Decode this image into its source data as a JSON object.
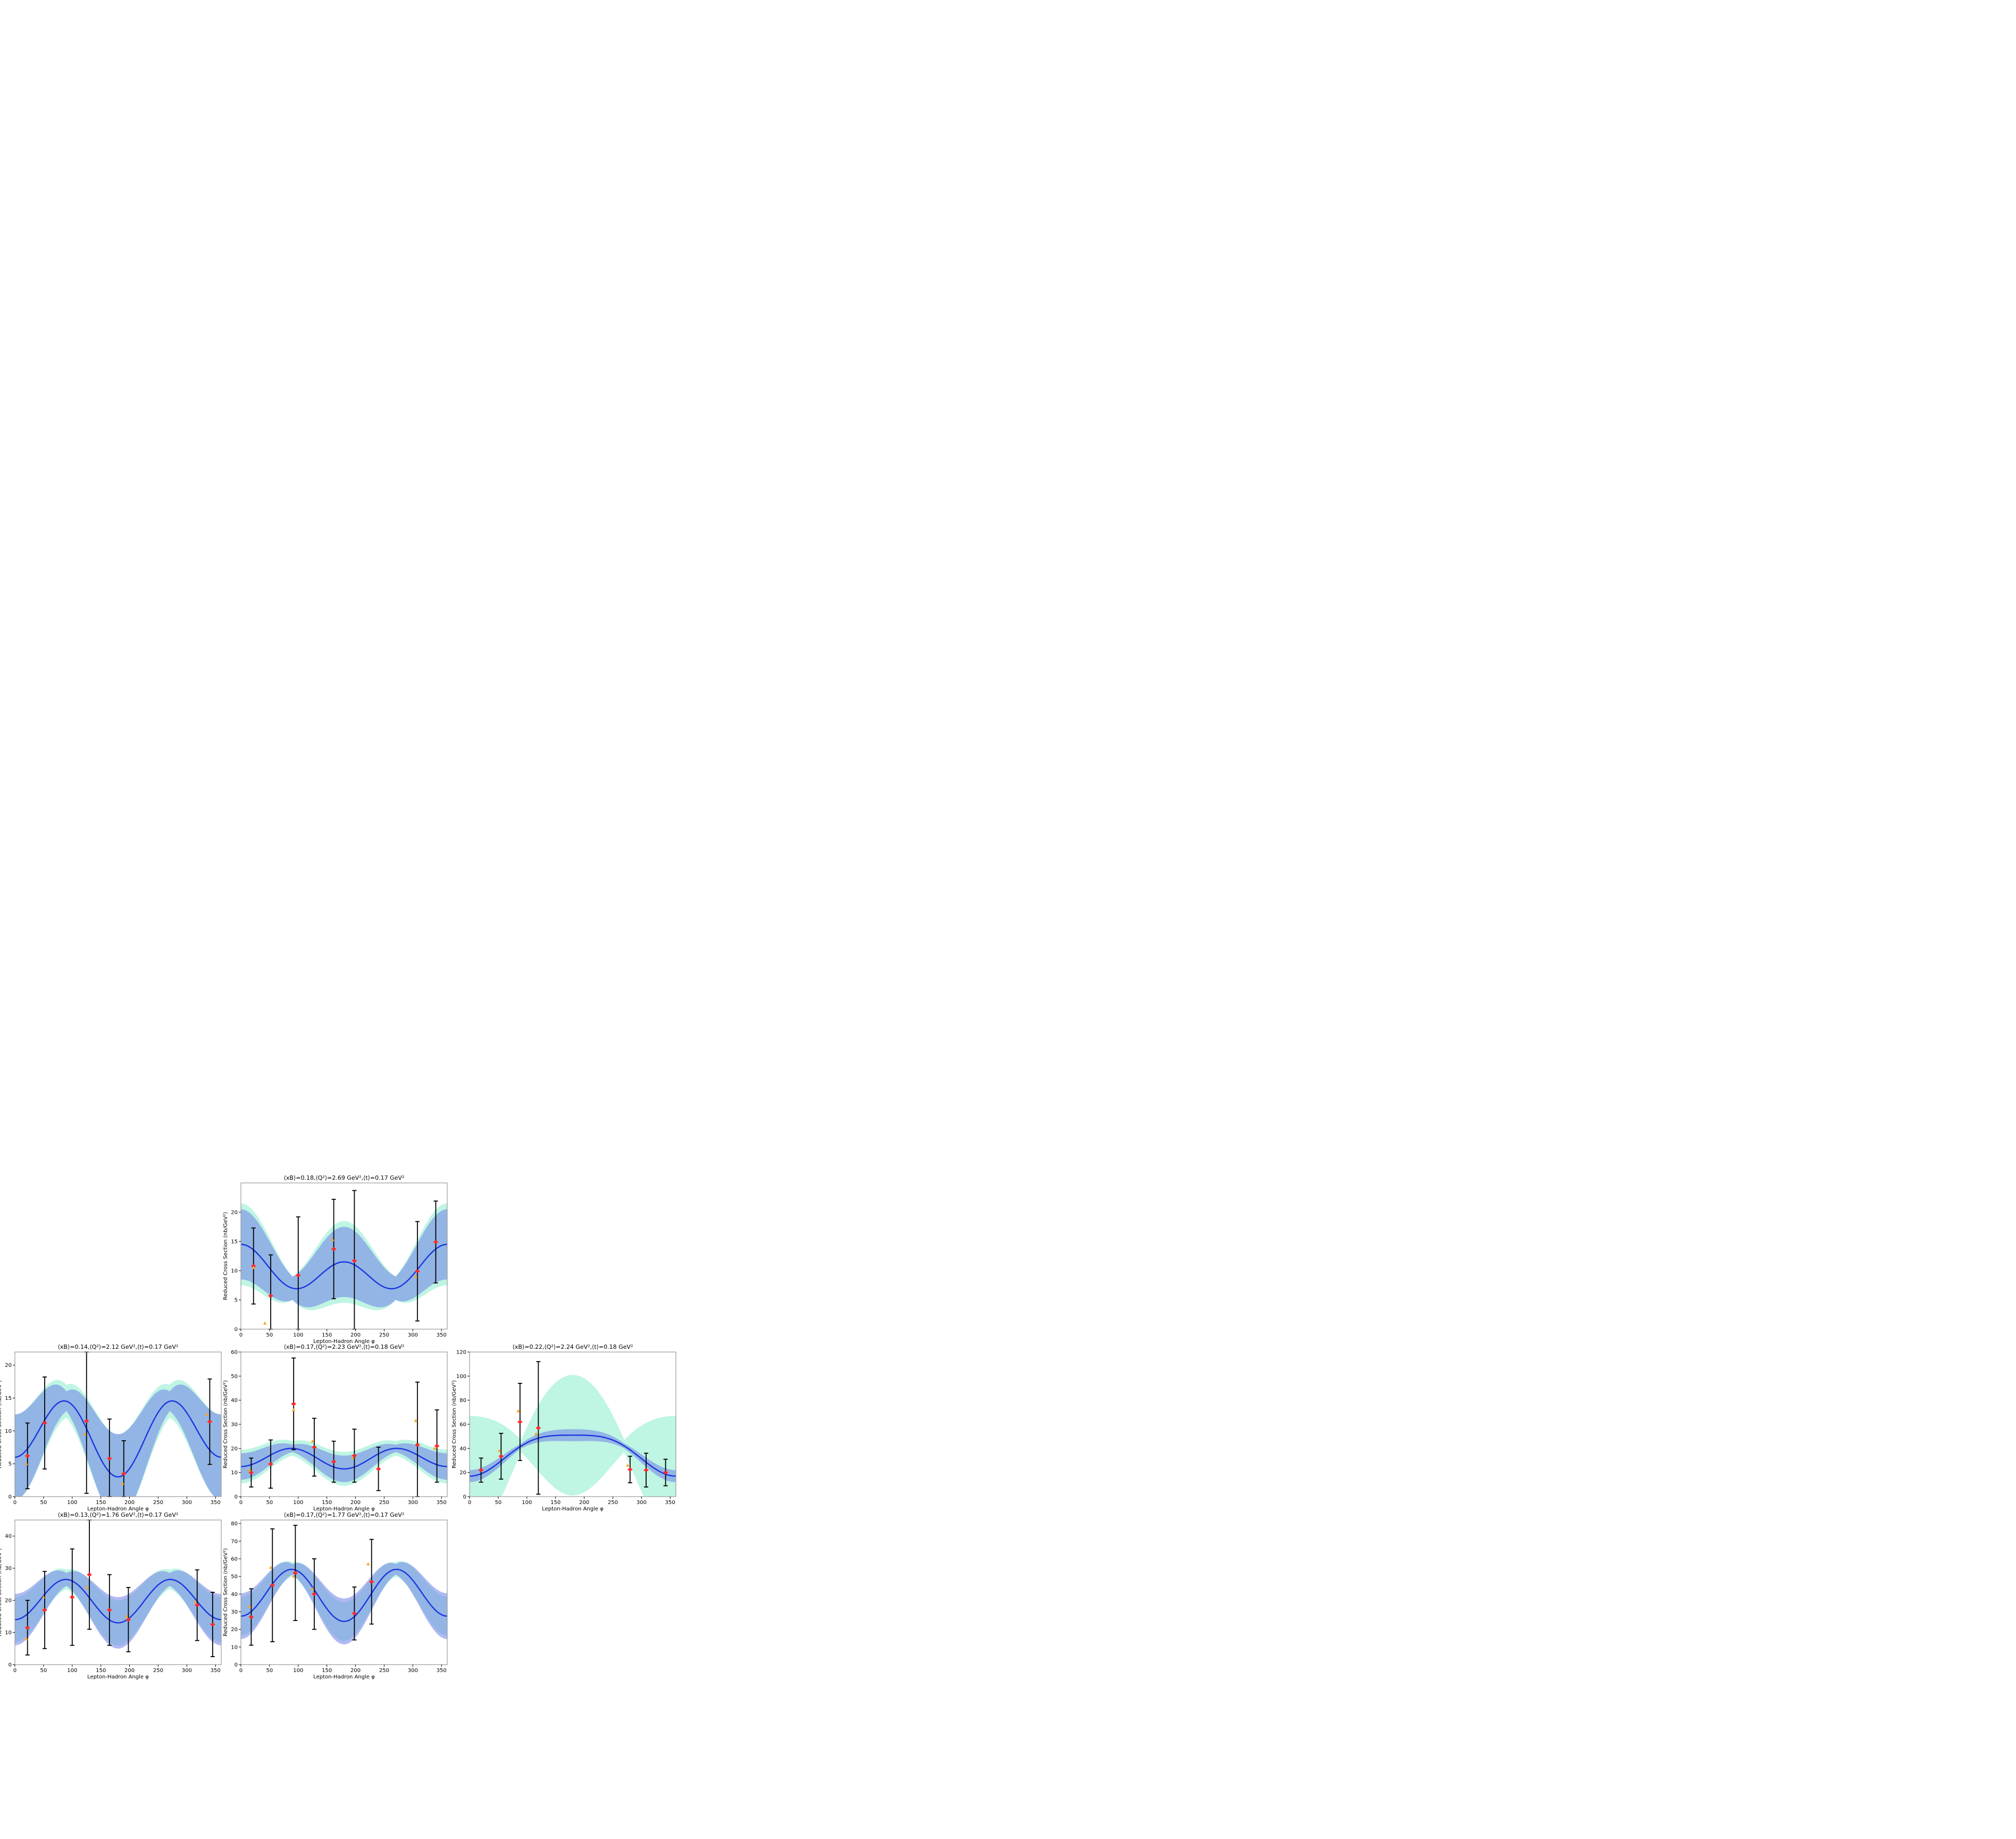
{
  "figure": {
    "xlabel": "Lepton-Hadron Angle φ",
    "ylabel": "Reduced Cross Section (nb/GeV²)"
  },
  "colors": {
    "fit_line": "#1a36e0",
    "band_blue": "#6f7fe8",
    "band_green": "#6fe8c0",
    "data_points": "#ff2a2a",
    "alt_points": "#f5a623",
    "error_bars": "#000000",
    "frame": "#999999"
  },
  "chart_data": [
    {
      "type": "line",
      "title": "⟨xB⟩=0.18,⟨Q²⟩=2.69 GeV²,⟨t⟩=0.17 GeV²",
      "xlabel": "Lepton-Hadron Angle φ",
      "ylabel": "Reduced Cross Section (nb/GeV²)",
      "xlim": [
        0,
        360
      ],
      "ylim": [
        0,
        25
      ],
      "xticks": [
        0,
        50,
        100,
        150,
        200,
        250,
        300,
        350
      ],
      "yticks": [
        0,
        5,
        10,
        15,
        20
      ],
      "fit": {
        "a0": 10,
        "a1": 1.5,
        "a2": 3.0
      },
      "blue_band": {
        "base": 2.0,
        "swing": 4.0
      },
      "green_band": {
        "base": 2.0,
        "swing": 5.0
      },
      "points": [
        {
          "x": 22,
          "y": 10.8,
          "err": 6.5,
          "xerr": 4
        },
        {
          "x": 52,
          "y": 5.7,
          "err": 7.0,
          "xerr": 4
        },
        {
          "x": 100,
          "y": 9.2,
          "err": 10.0,
          "xerr": 4
        },
        {
          "x": 162,
          "y": 13.7,
          "err": 8.5,
          "xerr": 4
        },
        {
          "x": 198,
          "y": 11.7,
          "err": 12.0,
          "xerr": 4
        },
        {
          "x": 308,
          "y": 9.9,
          "err": 8.5,
          "xerr": 4
        },
        {
          "x": 340,
          "y": 14.9,
          "err": 7.0,
          "xerr": 4
        }
      ],
      "alt_points": [
        {
          "x": 22,
          "y": 10.5
        },
        {
          "x": 42,
          "y": 1.0
        },
        {
          "x": 160,
          "y": 15.3
        },
        {
          "x": 305,
          "y": 9.0
        }
      ]
    },
    {
      "type": "line",
      "title": "⟨xB⟩=0.14,⟨Q²⟩=2.12 GeV²,⟨t⟩=0.17 GeV²",
      "xlabel": "Lepton-Hadron Angle φ",
      "ylabel": "Reduced Cross Section (nb/GeV²)",
      "xlim": [
        0,
        360
      ],
      "ylim": [
        0,
        22
      ],
      "xticks": [
        0,
        50,
        100,
        150,
        200,
        250,
        300,
        350
      ],
      "yticks": [
        0,
        5,
        10,
        15,
        20
      ],
      "fit": {
        "a0": 9.5,
        "a1": 1.5,
        "a2": -5.0
      },
      "blue_band": {
        "base": 1.5,
        "swing": 5.0
      },
      "green_band": {
        "base": 2.5,
        "swing": 4.0
      },
      "points": [
        {
          "x": 22,
          "y": 6.2,
          "err": 5.0,
          "xerr": 4
        },
        {
          "x": 52,
          "y": 11.2,
          "err": 7.0,
          "xerr": 4
        },
        {
          "x": 125,
          "y": 11.5,
          "err": 11.0,
          "xerr": 4
        },
        {
          "x": 165,
          "y": 5.8,
          "err": 6.0,
          "xerr": 4
        },
        {
          "x": 190,
          "y": 3.5,
          "err": 5.0,
          "xerr": 4
        },
        {
          "x": 340,
          "y": 11.4,
          "err": 6.5,
          "xerr": 4
        }
      ],
      "alt_points": [
        {
          "x": 20,
          "y": 5.0
        },
        {
          "x": 122,
          "y": 9.5
        },
        {
          "x": 188,
          "y": 2.0
        },
        {
          "x": 335,
          "y": 12.5
        }
      ]
    },
    {
      "type": "line",
      "title": "⟨xB⟩=0.17,⟨Q²⟩=2.23 GeV²,⟨t⟩=0.18 GeV²",
      "xlabel": "Lepton-Hadron Angle φ",
      "ylabel": "Reduced Cross Section (nb/GeV²)",
      "xlim": [
        0,
        360
      ],
      "ylim": [
        0,
        60
      ],
      "xticks": [
        0,
        50,
        100,
        150,
        200,
        250,
        300,
        350
      ],
      "yticks": [
        0,
        10,
        20,
        30,
        40,
        50,
        60
      ],
      "fit": {
        "a0": 16,
        "a1": 0.5,
        "a2": -4.0
      },
      "blue_band": {
        "base": 1.5,
        "swing": 4.0
      },
      "green_band": {
        "base": 3.0,
        "swing": 4.0
      },
      "points": [
        {
          "x": 18,
          "y": 10.0,
          "err": 6.0,
          "xerr": 4
        },
        {
          "x": 52,
          "y": 13.5,
          "err": 10.0,
          "xerr": 4
        },
        {
          "x": 92,
          "y": 38.5,
          "err": 19.0,
          "xerr": 4
        },
        {
          "x": 128,
          "y": 20.5,
          "err": 12.0,
          "xerr": 4
        },
        {
          "x": 162,
          "y": 14.5,
          "err": 8.5,
          "xerr": 4
        },
        {
          "x": 198,
          "y": 17.0,
          "err": 11.0,
          "xerr": 4
        },
        {
          "x": 240,
          "y": 11.5,
          "err": 9.0,
          "xerr": 4
        },
        {
          "x": 308,
          "y": 21.5,
          "err": 26.0,
          "xerr": 4
        },
        {
          "x": 342,
          "y": 21.0,
          "err": 15.0,
          "xerr": 4
        }
      ],
      "alt_points": [
        {
          "x": 15,
          "y": 11.0
        },
        {
          "x": 92,
          "y": 36.0
        },
        {
          "x": 125,
          "y": 23.0
        },
        {
          "x": 195,
          "y": 16.0
        },
        {
          "x": 305,
          "y": 31.5
        },
        {
          "x": 338,
          "y": 20.0
        }
      ]
    },
    {
      "type": "line",
      "title": "⟨xB⟩=0.22,⟨Q²⟩=2.24 GeV²,⟨t⟩=0.18 GeV²",
      "xlabel": "Lepton-Hadron Angle φ",
      "ylabel": "Reduced Cross Section (nb/GeV²)",
      "xlim": [
        0,
        360
      ],
      "ylim": [
        0,
        120
      ],
      "xticks": [
        0,
        50,
        100,
        150,
        200,
        250,
        300,
        350
      ],
      "yticks": [
        0,
        20,
        40,
        60,
        80,
        100,
        120
      ],
      "fit": {
        "a0": 38,
        "a1": -17,
        "a2": -4.0
      },
      "blue_band": {
        "base": 2.0,
        "swing": 3.0
      },
      "green_band": {
        "base": 5.0,
        "swing": 45.0
      },
      "points": [
        {
          "x": 20,
          "y": 22.0,
          "err": 10.0,
          "xerr": 4
        },
        {
          "x": 55,
          "y": 33.5,
          "err": 19.0,
          "xerr": 4
        },
        {
          "x": 88,
          "y": 62.0,
          "err": 32.0,
          "xerr": 4
        },
        {
          "x": 120,
          "y": 57.0,
          "err": 55.0,
          "xerr": 4
        },
        {
          "x": 280,
          "y": 22.5,
          "err": 11.0,
          "xerr": 4
        },
        {
          "x": 308,
          "y": 22.0,
          "err": 14.0,
          "xerr": 4
        },
        {
          "x": 342,
          "y": 20.0,
          "err": 11.0,
          "xerr": 4
        }
      ],
      "alt_points": [
        {
          "x": 52,
          "y": 38.0
        },
        {
          "x": 85,
          "y": 71.0
        },
        {
          "x": 116,
          "y": 52.0
        },
        {
          "x": 276,
          "y": 26.0
        }
      ]
    },
    {
      "type": "line",
      "title": "⟨xB⟩=0.13,⟨Q²⟩=1.76 GeV²,⟨t⟩=0.17 GeV²",
      "xlabel": "Lepton-Hadron Angle φ",
      "ylabel": "Reduced Cross Section (nb/GeV²)",
      "xlim": [
        0,
        360
      ],
      "ylim": [
        0,
        45
      ],
      "xticks": [
        0,
        50,
        100,
        150,
        200,
        250,
        300,
        350
      ],
      "yticks": [
        0,
        10,
        20,
        30,
        40
      ],
      "fit": {
        "a0": 20,
        "a1": 0.5,
        "a2": -6.5
      },
      "blue_band": {
        "base": 2.0,
        "swing": 6.0
      },
      "green_band": {
        "base": 3.0,
        "swing": 4.0
      },
      "points": [
        {
          "x": 22,
          "y": 11.5,
          "err": 8.5,
          "xerr": 4
        },
        {
          "x": 52,
          "y": 17.0,
          "err": 12.0,
          "xerr": 4
        },
        {
          "x": 100,
          "y": 21.0,
          "err": 15.0,
          "xerr": 4
        },
        {
          "x": 130,
          "y": 28.0,
          "err": 17.0,
          "xerr": 4
        },
        {
          "x": 165,
          "y": 17.0,
          "err": 11.0,
          "xerr": 4
        },
        {
          "x": 198,
          "y": 14.0,
          "err": 10.0,
          "xerr": 4
        },
        {
          "x": 318,
          "y": 18.5,
          "err": 11.0,
          "xerr": 4
        },
        {
          "x": 345,
          "y": 12.5,
          "err": 10.0,
          "xerr": 4
        }
      ],
      "alt_points": [
        {
          "x": 20,
          "y": 8.0
        },
        {
          "x": 50,
          "y": 21.0
        },
        {
          "x": 125,
          "y": 24.0
        },
        {
          "x": 195,
          "y": 15.0
        },
        {
          "x": 315,
          "y": 19.5
        }
      ]
    },
    {
      "type": "line",
      "title": "⟨xB⟩=0.17,⟨Q²⟩=1.77 GeV²,⟨t⟩=0.17 GeV²",
      "xlabel": "Lepton-Hadron Angle φ",
      "ylabel": "Reduced Cross Section (nb/GeV²)",
      "xlim": [
        0,
        360
      ],
      "ylim": [
        0,
        82
      ],
      "xticks": [
        0,
        50,
        100,
        150,
        200,
        250,
        300,
        350
      ],
      "yticks": [
        0,
        10,
        20,
        30,
        40,
        50,
        60,
        70,
        80
      ],
      "fit": {
        "a0": 40,
        "a1": 1.5,
        "a2": -14.0
      },
      "blue_band": {
        "base": 3.0,
        "swing": 10.0
      },
      "green_band": {
        "base": 4.0,
        "swing": 7.0
      },
      "points": [
        {
          "x": 18,
          "y": 27.0,
          "err": 16.0,
          "xerr": 4
        },
        {
          "x": 55,
          "y": 45.0,
          "err": 32.0,
          "xerr": 4
        },
        {
          "x": 95,
          "y": 52.0,
          "err": 27.0,
          "xerr": 4
        },
        {
          "x": 128,
          "y": 40.0,
          "err": 20.0,
          "xerr": 4
        },
        {
          "x": 198,
          "y": 29.0,
          "err": 15.0,
          "xerr": 4
        },
        {
          "x": 228,
          "y": 47.0,
          "err": 24.0,
          "xerr": 4
        }
      ],
      "alt_points": [
        {
          "x": 15,
          "y": 33.0
        },
        {
          "x": 52,
          "y": 55.0
        },
        {
          "x": 92,
          "y": 50.0
        },
        {
          "x": 125,
          "y": 43.0
        },
        {
          "x": 222,
          "y": 57.0
        }
      ]
    }
  ]
}
